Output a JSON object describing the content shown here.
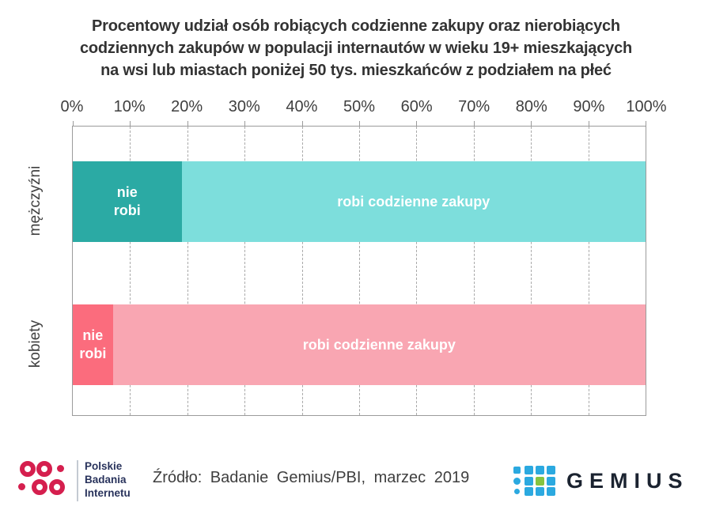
{
  "title_lines": [
    "Procentowy udział osób robiących codzienne zakupy oraz nierobiących",
    "codziennych zakupów w populacji internautów w wieku 19+ mieszkających",
    "na wsi lub miastach poniżej 50 tys. mieszkańców z podziałem na płeć"
  ],
  "chart_data": {
    "type": "bar",
    "orientation": "horizontal_stacked",
    "categories": [
      "mężczyźni",
      "kobiety"
    ],
    "series": [
      {
        "name": "nie robi",
        "values": [
          19,
          7
        ]
      },
      {
        "name": "robi codzienne zakupy",
        "values": [
          81,
          93
        ]
      }
    ],
    "segment_labels": {
      "nie_robi": "nie\nrobi",
      "robi": "robi codzienne zakupy"
    },
    "x_tick_labels": [
      "0%",
      "10%",
      "20%",
      "30%",
      "40%",
      "50%",
      "60%",
      "70%",
      "80%",
      "90%",
      "100%"
    ],
    "xlim": [
      0,
      100
    ],
    "grid": "vertical-dashed",
    "legend": "none",
    "series_colors": {
      "mężczyźni": [
        "#2BAAA4",
        "#7DDEDC"
      ],
      "kobiety": [
        "#FB6C7D",
        "#F9A6B2"
      ]
    }
  },
  "footer": {
    "source_text": "Źródło: Badanie Gemius/PBI, marzec 2019",
    "pbi_logo": {
      "text_lines": [
        "Polskie",
        "Badania",
        "Internetu"
      ],
      "brand_color": "#D51F4E",
      "text_color": "#29335C"
    },
    "gemius_logo": {
      "text": "GEMIUS",
      "blue": "#2BA9E0",
      "green": "#85C440",
      "text_color": "#1B2330"
    }
  }
}
